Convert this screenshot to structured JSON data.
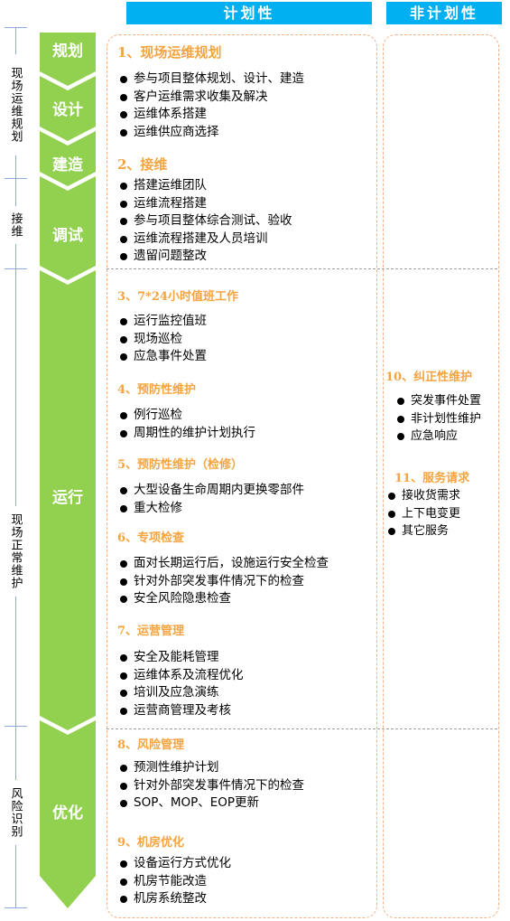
{
  "headers": {
    "planned": "计划性",
    "unplanned": "非计划性"
  },
  "left_labels": [
    "现场运维规划",
    "接维",
    "现场正常维护",
    "风险识别"
  ],
  "stages": [
    "规划",
    "设计",
    "建造",
    "调试",
    "运行",
    "优化"
  ],
  "planned_sections": [
    {
      "title": "1、现场运维规划",
      "items": [
        "参与项目整体规划、设计、建造",
        "客户运维需求收集及解决",
        "运维体系搭建",
        "运维供应商选择"
      ]
    },
    {
      "title": "2、接维",
      "items": [
        "搭建运维团队",
        "运维流程搭建",
        "参与项目整体综合测试、验收",
        "运维流程搭建及人员培训",
        "遗留问题整改"
      ]
    },
    {
      "title": "3、7*24小时值班工作",
      "items": [
        "运行监控值班",
        "现场巡检",
        "应急事件处置"
      ]
    },
    {
      "title": "4、预防性维护",
      "items": [
        "例行巡检",
        "周期性的维护计划执行"
      ]
    },
    {
      "title": "5、预防性维护（检修）",
      "items": [
        "大型设备生命周期内更换零部件",
        "重大检修"
      ]
    },
    {
      "title": "6、专项检查",
      "items": [
        "面对长期运行后，设施运行安全检查",
        "针对外部突发事件情况下的检查",
        "安全风险隐患检查"
      ]
    },
    {
      "title": "7、运营管理",
      "items": [
        "安全及能耗管理",
        "运维体系及流程优化",
        "培训及应急演练",
        "运营商管理及考核"
      ]
    },
    {
      "title": "8、风险管理",
      "items": [
        "预测性维护计划",
        "针对外部突发事件情况下的检查",
        "SOP、MOP、EOP更新"
      ]
    },
    {
      "title": "9、机房优化",
      "items": [
        "设备运行方式优化",
        "机房节能改造",
        "机房系统整改"
      ]
    }
  ],
  "unplanned_sections": [
    {
      "title": "10、纠正性维护",
      "items": [
        "突发事件处置",
        "非计划性维护",
        "应急响应"
      ]
    },
    {
      "title": "11、服务请求",
      "items": [
        "接收货需求",
        "上下电变更",
        "其它服务"
      ]
    }
  ],
  "colors": {
    "header": "#00b0f0",
    "arrow": "#92d050",
    "section_title": "#f4a440",
    "panel_border": "#f4b183",
    "timeline": "#8faadc"
  }
}
